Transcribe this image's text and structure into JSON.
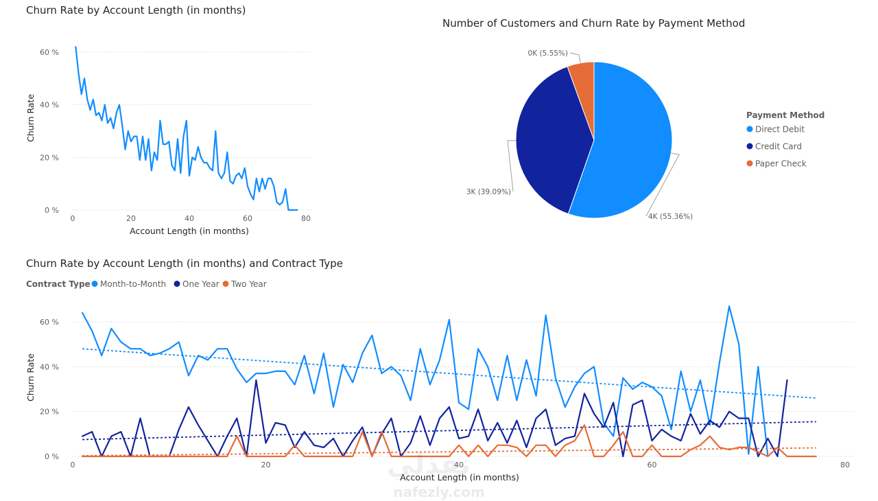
{
  "chart_data": [
    {
      "type": "line",
      "title": "Churn Rate by Account Length (in months)",
      "xlabel": "Account Length (in months)",
      "ylabel": "Churn Rate",
      "xlim": [
        0,
        80
      ],
      "ylim": [
        0,
        60
      ],
      "x_ticks": [
        "0",
        "20",
        "40",
        "60",
        "80"
      ],
      "y_ticks": [
        "0 %",
        "20 %",
        "40 %",
        "60 %"
      ],
      "grid": true,
      "series": [
        {
          "color": "#118DFF",
          "x": [
            1,
            2,
            3,
            4,
            5,
            6,
            7,
            8,
            9,
            10,
            11,
            12,
            13,
            14,
            15,
            16,
            17,
            18,
            19,
            20,
            21,
            22,
            23,
            24,
            25,
            26,
            27,
            28,
            29,
            30,
            31,
            32,
            33,
            34,
            35,
            36,
            37,
            38,
            39,
            40,
            41,
            42,
            43,
            44,
            45,
            46,
            47,
            48,
            49,
            50,
            51,
            52,
            53,
            54,
            55,
            56,
            57,
            58,
            59,
            60,
            61,
            62,
            63,
            64,
            65,
            66,
            67,
            68,
            69,
            70,
            71,
            72,
            73,
            74,
            75,
            76,
            77
          ],
          "values": [
            62,
            52,
            44,
            50,
            42,
            38,
            42,
            36,
            37,
            34,
            40,
            33,
            35,
            31,
            37,
            40,
            32,
            23,
            30,
            26,
            28,
            28,
            19,
            28,
            19,
            27,
            15,
            22,
            19,
            34,
            25,
            25,
            26,
            17,
            15,
            27,
            14,
            28,
            34,
            13,
            20,
            19,
            24,
            20,
            18,
            18,
            16,
            15,
            30,
            14,
            12,
            14,
            22,
            11,
            10,
            13,
            14,
            12,
            16,
            9,
            6,
            4,
            12,
            7,
            12,
            8,
            12,
            12,
            9,
            3,
            2,
            3,
            8,
            0,
            0,
            0,
            0
          ]
        }
      ]
    },
    {
      "type": "pie",
      "title": "Number of Customers and Churn Rate by Payment Method",
      "legend_title": "Payment Method",
      "legend_position": "right",
      "slices": [
        {
          "label": "Direct Debit",
          "value": 55.36,
          "display": "4K (55.36%)",
          "color": "#118DFF"
        },
        {
          "label": "Credit Card",
          "value": 39.09,
          "display": "3K (39.09%)",
          "color": "#12239E"
        },
        {
          "label": "Paper Check",
          "value": 5.55,
          "display": "0K (5.55%)",
          "color": "#E66C37"
        }
      ]
    },
    {
      "type": "line",
      "title": "Churn Rate by Account Length (in months) and Contract Type",
      "legend_title": "Contract Type",
      "legend_position": "top-left",
      "xlabel": "Account Length (in months)",
      "ylabel": "Churn Rate",
      "xlim": [
        0,
        80
      ],
      "ylim": [
        0,
        60
      ],
      "x_ticks": [
        "0",
        "20",
        "40",
        "60",
        "80"
      ],
      "y_ticks": [
        "0 %",
        "20 %",
        "40 %",
        "60 %"
      ],
      "grid": true,
      "trend_lines": true,
      "series": [
        {
          "name": "Month-to-Month",
          "color": "#118DFF",
          "x": [
            1,
            2,
            3,
            4,
            5,
            6,
            7,
            8,
            9,
            10,
            11,
            12,
            13,
            14,
            15,
            16,
            17,
            18,
            19,
            20,
            21,
            22,
            23,
            24,
            25,
            26,
            27,
            28,
            29,
            30,
            31,
            32,
            33,
            34,
            35,
            36,
            37,
            38,
            39,
            40,
            41,
            42,
            43,
            44,
            45,
            46,
            47,
            48,
            49,
            50,
            51,
            52,
            53,
            54,
            55,
            56,
            57,
            58,
            59,
            60,
            61,
            62,
            63,
            64,
            65,
            66,
            67,
            68,
            69,
            70,
            71,
            72
          ],
          "values": [
            64,
            56,
            45,
            57,
            51,
            48,
            48,
            45,
            46,
            48,
            51,
            36,
            45,
            43,
            48,
            48,
            39,
            33,
            37,
            37,
            38,
            38,
            32,
            45,
            28,
            46,
            22,
            41,
            33,
            46,
            54,
            37,
            40,
            36,
            25,
            48,
            32,
            43,
            61,
            24,
            21,
            48,
            40,
            25,
            45,
            25,
            43,
            27,
            63,
            35,
            22,
            31,
            37,
            40,
            15,
            9,
            35,
            30,
            33,
            31,
            27,
            12,
            38,
            20,
            34,
            14,
            42,
            67,
            50,
            1,
            40,
            0
          ],
          "trend": [
            48,
            26
          ]
        },
        {
          "name": "One Year",
          "color": "#12239E",
          "x": [
            1,
            2,
            3,
            4,
            5,
            6,
            7,
            8,
            9,
            10,
            11,
            12,
            13,
            14,
            15,
            16,
            17,
            18,
            19,
            20,
            21,
            22,
            23,
            24,
            25,
            26,
            27,
            28,
            29,
            30,
            31,
            32,
            33,
            34,
            35,
            36,
            37,
            38,
            39,
            40,
            41,
            42,
            43,
            44,
            45,
            46,
            47,
            48,
            49,
            50,
            51,
            52,
            53,
            54,
            55,
            56,
            57,
            58,
            59,
            60,
            61,
            62,
            63,
            64,
            65,
            66,
            67,
            68,
            69,
            70,
            71,
            72,
            73,
            74
          ],
          "values": [
            9,
            11,
            0,
            9,
            11,
            0,
            17,
            0,
            0,
            0,
            12,
            22,
            14,
            7,
            0,
            9,
            17,
            0,
            34,
            6,
            15,
            14,
            4,
            11,
            5,
            4,
            8,
            0,
            7,
            13,
            0,
            10,
            17,
            0,
            6,
            18,
            5,
            17,
            22,
            8,
            9,
            21,
            7,
            15,
            6,
            16,
            4,
            17,
            21,
            5,
            8,
            9,
            28,
            19,
            13,
            24,
            0,
            23,
            25,
            7,
            12,
            9,
            7,
            19,
            10,
            16,
            13,
            20,
            17,
            17,
            0,
            8,
            0,
            34
          ],
          "trend": [
            7.5,
            15.5
          ]
        },
        {
          "name": "Two Year",
          "color": "#E66C37",
          "x": [
            1,
            2,
            3,
            4,
            5,
            6,
            7,
            8,
            9,
            10,
            11,
            12,
            13,
            14,
            15,
            16,
            17,
            18,
            19,
            20,
            21,
            22,
            23,
            24,
            25,
            26,
            27,
            28,
            29,
            30,
            31,
            32,
            33,
            34,
            35,
            36,
            37,
            38,
            39,
            40,
            41,
            42,
            43,
            44,
            45,
            46,
            47,
            48,
            49,
            50,
            51,
            52,
            53,
            54,
            55,
            56,
            57,
            58,
            59,
            60,
            61,
            62,
            63,
            64,
            65,
            66,
            67,
            68,
            69,
            70,
            71,
            72,
            73,
            74,
            75,
            76,
            77
          ],
          "values": [
            0,
            0,
            0,
            0,
            0,
            0,
            0,
            0,
            0,
            0,
            0,
            0,
            0,
            0,
            0,
            0,
            9,
            0,
            0,
            0,
            0,
            0,
            5,
            0,
            0,
            0,
            0,
            0,
            0,
            11,
            0,
            11,
            0,
            0,
            0,
            0,
            0,
            0,
            0,
            5,
            0,
            5,
            0,
            5,
            5,
            4,
            0,
            5,
            5,
            0,
            5,
            7,
            14,
            0,
            0,
            5,
            11,
            0,
            0,
            5,
            0,
            0,
            0,
            3,
            5,
            9,
            4,
            3,
            4,
            4,
            2,
            0,
            4,
            0,
            0,
            0,
            0
          ],
          "trend": [
            0.3,
            3.8
          ]
        }
      ]
    }
  ],
  "watermark": {
    "arabic": "نفذلي",
    "latin": "nafezly.com"
  }
}
